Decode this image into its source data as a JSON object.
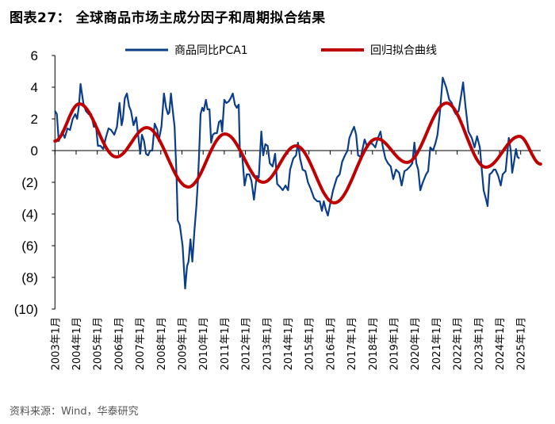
{
  "title": "图表27： 全球商品市场主成分因子和周期拟合结果",
  "source": "资料来源：Wind，华泰研究",
  "chart_data": {
    "type": "line",
    "title": "全球商品市场主成分因子和周期拟合结果",
    "xlabel": "",
    "ylabel": "",
    "ylim": [
      -10,
      6
    ],
    "xlim": [
      2003.0,
      2026.0
    ],
    "yticks": [
      6,
      4,
      2,
      0,
      -2,
      -4,
      -6,
      -8,
      -10
    ],
    "ytick_labels": [
      "6",
      "4",
      "2",
      "0",
      "(2)",
      "(4)",
      "(6)",
      "(8)",
      "(10)"
    ],
    "xtick_labels": [
      "2003年1月",
      "2004年1月",
      "2005年1月",
      "2006年1月",
      "2007年1月",
      "2008年1月",
      "2009年1月",
      "2010年1月",
      "2011年1月",
      "2012年1月",
      "2013年1月",
      "2014年1月",
      "2015年1月",
      "2016年1月",
      "2017年1月",
      "2018年1月",
      "2019年1月",
      "2020年1月",
      "2021年1月",
      "2022年1月",
      "2023年1月",
      "2024年1月",
      "2025年1月"
    ],
    "legend_position": "top",
    "grid": false,
    "series": [
      {
        "name": "商品同比PCA1",
        "color": "#0a3d8a",
        "points": [
          [
            2003.0,
            2.5
          ],
          [
            2003.09,
            2.3
          ],
          [
            2003.18,
            0.6
          ],
          [
            2003.34,
            1.2
          ],
          [
            2003.46,
            0.8
          ],
          [
            2003.59,
            1.4
          ],
          [
            2003.71,
            1.3
          ],
          [
            2003.84,
            2.0
          ],
          [
            2003.96,
            2.3
          ],
          [
            2004.05,
            2.0
          ],
          [
            2004.13,
            2.8
          ],
          [
            2004.21,
            4.2
          ],
          [
            2004.34,
            3.0
          ],
          [
            2004.46,
            2.5
          ],
          [
            2004.59,
            2.3
          ],
          [
            2004.71,
            2.3
          ],
          [
            2004.84,
            1.5
          ],
          [
            2004.93,
            1.7
          ],
          [
            2005.03,
            0.3
          ],
          [
            2005.15,
            0.3
          ],
          [
            2005.28,
            0.1
          ],
          [
            2005.4,
            0.8
          ],
          [
            2005.53,
            1.4
          ],
          [
            2005.65,
            1.3
          ],
          [
            2005.8,
            1.0
          ],
          [
            2005.93,
            1.5
          ],
          [
            2006.05,
            3.0
          ],
          [
            2006.15,
            1.6
          ],
          [
            2006.21,
            2.0
          ],
          [
            2006.3,
            3.3
          ],
          [
            2006.4,
            3.6
          ],
          [
            2006.5,
            2.8
          ],
          [
            2006.59,
            2.5
          ],
          [
            2006.71,
            1.6
          ],
          [
            2006.84,
            2.1
          ],
          [
            2006.93,
            1.0
          ],
          [
            2007.03,
            -0.2
          ],
          [
            2007.11,
            1.0
          ],
          [
            2007.21,
            0.6
          ],
          [
            2007.3,
            -0.2
          ],
          [
            2007.4,
            -0.3
          ],
          [
            2007.5,
            0.0
          ],
          [
            2007.6,
            0.0
          ],
          [
            2007.71,
            1.7
          ],
          [
            2007.84,
            1.3
          ],
          [
            2007.9,
            0.6
          ],
          [
            2008.03,
            1.5
          ],
          [
            2008.15,
            3.6
          ],
          [
            2008.25,
            2.7
          ],
          [
            2008.34,
            2.3
          ],
          [
            2008.4,
            2.4
          ],
          [
            2008.48,
            3.6
          ],
          [
            2008.55,
            2.7
          ],
          [
            2008.65,
            1.5
          ],
          [
            2008.74,
            -1.5
          ],
          [
            2008.8,
            -4.4
          ],
          [
            2008.9,
            -4.7
          ],
          [
            2009.03,
            -6.0
          ],
          [
            2009.15,
            -8.7
          ],
          [
            2009.24,
            -7.3
          ],
          [
            2009.31,
            -7.0
          ],
          [
            2009.4,
            -5.6
          ],
          [
            2009.49,
            -7.0
          ],
          [
            2009.59,
            -5.0
          ],
          [
            2009.68,
            -3.5
          ],
          [
            2009.75,
            -2.0
          ],
          [
            2009.8,
            -0.5
          ],
          [
            2009.88,
            2.3
          ],
          [
            2009.96,
            2.7
          ],
          [
            2010.03,
            2.5
          ],
          [
            2010.13,
            3.2
          ],
          [
            2010.21,
            2.6
          ],
          [
            2010.3,
            2.6
          ],
          [
            2010.38,
            0.5
          ],
          [
            2010.46,
            1.0
          ],
          [
            2010.55,
            1.1
          ],
          [
            2010.65,
            1.1
          ],
          [
            2010.75,
            1.8
          ],
          [
            2010.84,
            1.9
          ],
          [
            2010.9,
            1.2
          ],
          [
            2011.0,
            3.2
          ],
          [
            2011.1,
            3.0
          ],
          [
            2011.21,
            3.1
          ],
          [
            2011.3,
            3.3
          ],
          [
            2011.4,
            3.6
          ],
          [
            2011.5,
            2.9
          ],
          [
            2011.59,
            2.7
          ],
          [
            2011.68,
            2.9
          ],
          [
            2011.74,
            -0.4
          ],
          [
            2011.84,
            -0.2
          ],
          [
            2011.96,
            -2.2
          ],
          [
            2012.06,
            -1.5
          ],
          [
            2012.18,
            -1.5
          ],
          [
            2012.28,
            -1.9
          ],
          [
            2012.4,
            -3.1
          ],
          [
            2012.53,
            -1.6
          ],
          [
            2012.63,
            -1.7
          ],
          [
            2012.75,
            1.2
          ],
          [
            2012.84,
            -0.3
          ],
          [
            2012.94,
            0.4
          ],
          [
            2013.05,
            0.3
          ],
          [
            2013.15,
            -0.8
          ],
          [
            2013.28,
            -1.0
          ],
          [
            2013.4,
            -0.2
          ],
          [
            2013.5,
            -2.1
          ],
          [
            2013.64,
            -2.3
          ],
          [
            2013.76,
            -2.5
          ],
          [
            2013.89,
            -2.2
          ],
          [
            2014.01,
            -2.5
          ],
          [
            2014.11,
            -1.2
          ],
          [
            2014.26,
            -0.5
          ],
          [
            2014.39,
            -0.3
          ],
          [
            2014.48,
            0.5
          ],
          [
            2014.58,
            -0.5
          ],
          [
            2014.7,
            -1.2
          ],
          [
            2014.83,
            -1.3
          ],
          [
            2014.95,
            -2.0
          ],
          [
            2015.08,
            -2.4
          ],
          [
            2015.24,
            -3.0
          ],
          [
            2015.39,
            -3.2
          ],
          [
            2015.51,
            -3.2
          ],
          [
            2015.61,
            -3.8
          ],
          [
            2015.7,
            -3.2
          ],
          [
            2015.79,
            -3.7
          ],
          [
            2015.89,
            -4.1
          ],
          [
            2016.01,
            -3.3
          ],
          [
            2016.14,
            -2.5
          ],
          [
            2016.32,
            -1.7
          ],
          [
            2016.45,
            -1.5
          ],
          [
            2016.57,
            -0.7
          ],
          [
            2016.7,
            -0.3
          ],
          [
            2016.82,
            0.0
          ],
          [
            2016.91,
            0.8
          ],
          [
            2017.03,
            1.2
          ],
          [
            2017.13,
            1.5
          ],
          [
            2017.23,
            1.0
          ],
          [
            2017.32,
            -0.3
          ],
          [
            2017.45,
            -0.4
          ],
          [
            2017.63,
            0.7
          ],
          [
            2017.76,
            0.2
          ],
          [
            2017.88,
            0.5
          ],
          [
            2018.01,
            0.4
          ],
          [
            2018.13,
            0.2
          ],
          [
            2018.26,
            0.8
          ],
          [
            2018.38,
            1.2
          ],
          [
            2018.48,
            0.3
          ],
          [
            2018.61,
            -0.5
          ],
          [
            2018.73,
            -0.8
          ],
          [
            2018.86,
            -1.0
          ],
          [
            2018.98,
            -1.8
          ],
          [
            2019.11,
            -1.2
          ],
          [
            2019.26,
            -1.4
          ],
          [
            2019.38,
            -2.2
          ],
          [
            2019.51,
            -1.3
          ],
          [
            2019.63,
            -1.2
          ],
          [
            2019.78,
            -1.0
          ],
          [
            2019.88,
            -0.8
          ],
          [
            2019.98,
            0.5
          ],
          [
            2020.07,
            -0.8
          ],
          [
            2020.16,
            -1.2
          ],
          [
            2020.26,
            -2.5
          ],
          [
            2020.38,
            -2.0
          ],
          [
            2020.53,
            -1.5
          ],
          [
            2020.63,
            -1.3
          ],
          [
            2020.73,
            0.2
          ],
          [
            2020.86,
            0.0
          ],
          [
            2020.98,
            0.5
          ],
          [
            2021.07,
            1.0
          ],
          [
            2021.19,
            2.5
          ],
          [
            2021.32,
            4.6
          ],
          [
            2021.48,
            4.0
          ],
          [
            2021.63,
            3.2
          ],
          [
            2021.75,
            3.0
          ],
          [
            2021.85,
            2.5
          ],
          [
            2021.94,
            2.3
          ],
          [
            2022.07,
            2.5
          ],
          [
            2022.19,
            3.5
          ],
          [
            2022.28,
            4.3
          ],
          [
            2022.4,
            2.7
          ],
          [
            2022.53,
            1.2
          ],
          [
            2022.69,
            0.8
          ],
          [
            2022.82,
            0.2
          ],
          [
            2022.94,
            0.9
          ],
          [
            2023.07,
            0.2
          ],
          [
            2023.15,
            -1.0
          ],
          [
            2023.25,
            -2.5
          ],
          [
            2023.35,
            -3.0
          ],
          [
            2023.44,
            -3.5
          ],
          [
            2023.53,
            -1.5
          ],
          [
            2023.63,
            -1.4
          ],
          [
            2023.73,
            -1.2
          ],
          [
            2023.81,
            -1.2
          ],
          [
            2023.94,
            -1.6
          ],
          [
            2024.06,
            -2.2
          ],
          [
            2024.15,
            -1.5
          ],
          [
            2024.29,
            -1.3
          ],
          [
            2024.44,
            0.8
          ],
          [
            2024.53,
            0.0
          ],
          [
            2024.6,
            -1.4
          ],
          [
            2024.69,
            -0.7
          ],
          [
            2024.78,
            0.1
          ],
          [
            2024.85,
            -0.4
          ],
          [
            2024.94,
            -0.5
          ]
        ]
      },
      {
        "name": "回归拟合曲线",
        "color": "#c00000",
        "points": [
          [
            2003.0,
            0.6
          ],
          [
            2004.15,
            2.95
          ],
          [
            2005.9,
            -0.4
          ],
          [
            2007.34,
            1.45
          ],
          [
            2009.3,
            -2.3
          ],
          [
            2011.03,
            1.05
          ],
          [
            2012.84,
            -2.0
          ],
          [
            2014.39,
            0.3
          ],
          [
            2016.2,
            -3.3
          ],
          [
            2018.2,
            0.75
          ],
          [
            2019.63,
            -0.75
          ],
          [
            2021.5,
            3.0
          ],
          [
            2023.35,
            -1.05
          ],
          [
            2024.94,
            0.9
          ],
          [
            2025.94,
            -0.85
          ]
        ],
        "interpolation": "smooth"
      }
    ]
  }
}
